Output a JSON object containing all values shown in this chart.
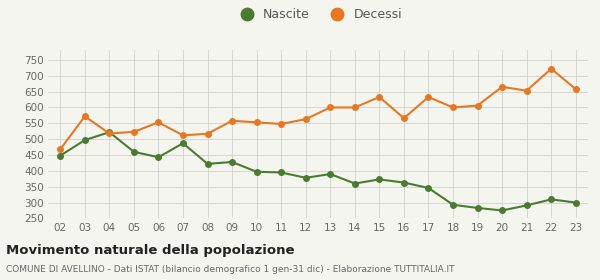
{
  "years": [
    "02",
    "03",
    "04",
    "05",
    "06",
    "07",
    "08",
    "09",
    "10",
    "11",
    "12",
    "13",
    "14",
    "15",
    "16",
    "17",
    "18",
    "19",
    "20",
    "21",
    "22",
    "23"
  ],
  "nascite": [
    448,
    497,
    522,
    460,
    443,
    487,
    422,
    428,
    397,
    395,
    378,
    390,
    360,
    373,
    363,
    346,
    293,
    283,
    275,
    291,
    310,
    300
  ],
  "decessi": [
    468,
    572,
    518,
    523,
    553,
    512,
    517,
    558,
    553,
    548,
    563,
    600,
    600,
    633,
    566,
    633,
    600,
    606,
    665,
    653,
    722,
    658
  ],
  "nascite_color": "#4a7c2f",
  "decessi_color": "#e87722",
  "marker_size": 4,
  "line_width": 1.5,
  "ylim": [
    250,
    780
  ],
  "yticks": [
    250,
    300,
    350,
    400,
    450,
    500,
    550,
    600,
    650,
    700,
    750
  ],
  "title": "Movimento naturale della popolazione",
  "subtitle": "COMUNE DI AVELLINO - Dati ISTAT (bilancio demografico 1 gen-31 dic) - Elaborazione TUTTITALIA.IT",
  "legend_nascite": "Nascite",
  "legend_decessi": "Decessi",
  "bg_color": "#f5f5f0",
  "grid_color": "#d0d0d0"
}
